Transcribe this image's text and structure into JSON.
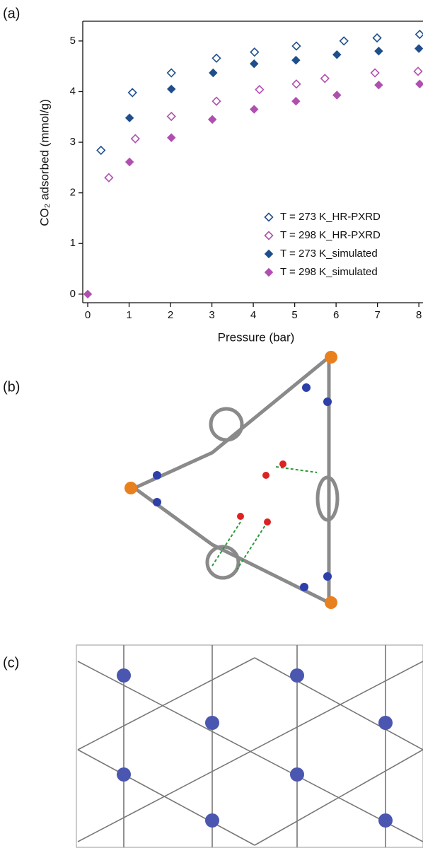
{
  "panel_labels": [
    "(a)",
    "(b)",
    "(c)"
  ],
  "chart_data": {
    "type": "scatter",
    "x_label": "Pressure (bar)",
    "y_label": "CO₂ adsorbed (mmol/g)",
    "xlim": [
      -0.12,
      8.1
    ],
    "ylim": [
      -0.17,
      5.39
    ],
    "xticks": [
      0,
      1,
      2,
      3,
      4,
      5,
      6,
      7,
      8
    ],
    "yticks": [
      0,
      1,
      2,
      3,
      4,
      5
    ],
    "legend": "lower right",
    "series": [
      {
        "name": "T = 273 K_HR-PXRD",
        "color": "#1f4e8c",
        "marker": "open",
        "x": [
          0.32,
          1.08,
          2.02,
          3.11,
          4.03,
          5.04,
          6.19,
          6.99,
          8.02
        ],
        "values": [
          2.84,
          3.98,
          4.37,
          4.66,
          4.78,
          4.9,
          5.0,
          5.06,
          5.13
        ]
      },
      {
        "name": "T = 298 K_HR-PXRD",
        "color": "#b04fb0",
        "marker": "open",
        "x": [
          0.51,
          1.15,
          2.02,
          3.11,
          4.15,
          5.04,
          5.73,
          6.94,
          7.98
        ],
        "values": [
          2.3,
          3.07,
          3.51,
          3.81,
          4.04,
          4.15,
          4.26,
          4.37,
          4.4
        ]
      },
      {
        "name": "T = 273 K_simulated",
        "color": "#1f4e8c",
        "marker": "filled",
        "x": [
          1.01,
          2.02,
          3.03,
          4.02,
          5.03,
          6.02,
          7.03,
          8.0
        ],
        "values": [
          3.48,
          4.05,
          4.37,
          4.55,
          4.62,
          4.73,
          4.8,
          4.85
        ]
      },
      {
        "name": "T = 298 K_simulated",
        "color": "#b04fb0",
        "marker": "filled",
        "x": [
          0,
          1.01,
          2.02,
          3.01,
          4.02,
          5.03,
          6.02,
          7.03,
          8.02
        ],
        "values": [
          0,
          2.61,
          3.09,
          3.45,
          3.65,
          3.81,
          3.93,
          4.13,
          4.15
        ]
      }
    ]
  }
}
